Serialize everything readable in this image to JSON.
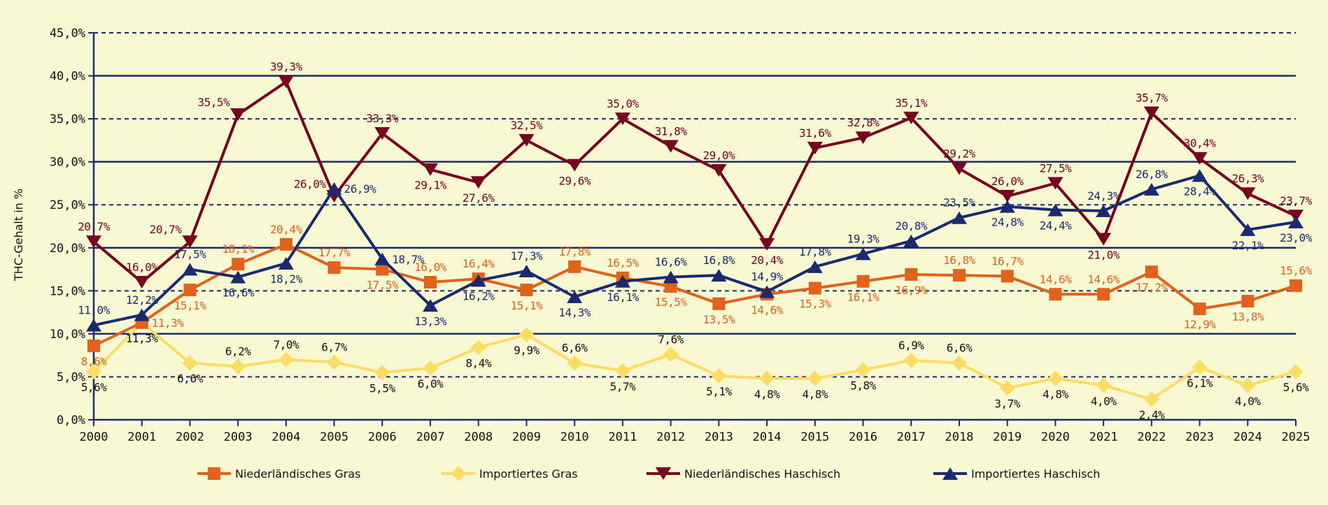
{
  "chart_data": {
    "type": "line",
    "title": "",
    "xlabel": "",
    "ylabel": "THC-Gehalt in %",
    "ylim": [
      0,
      45
    ],
    "ytick_step": 5,
    "yticks": [
      "0,0%",
      "5,0%",
      "10,0%",
      "15,0%",
      "20,0%",
      "25,0%",
      "30,0%",
      "35,0%",
      "40,0%",
      "45,0%"
    ],
    "grid": {
      "solid_at": [
        10,
        20,
        30,
        40
      ],
      "dashed_at": [
        5,
        15,
        25,
        35,
        45
      ]
    },
    "categories": [
      "2000",
      "2001",
      "2002",
      "2003",
      "2004",
      "2005",
      "2006",
      "2007",
      "2008",
      "2009",
      "2010",
      "2011",
      "2012",
      "2013",
      "2014",
      "2015",
      "2016",
      "2017",
      "2018",
      "2019",
      "2020",
      "2021",
      "2022",
      "2023",
      "2024",
      "2025"
    ],
    "legend_position": "bottom",
    "series": [
      {
        "name": "Niederländisches Gras",
        "color": "#E2621C",
        "marker": "square",
        "values": [
          8.6,
          11.3,
          15.1,
          18.1,
          20.4,
          17.7,
          17.5,
          16.0,
          16.4,
          15.1,
          17.8,
          16.5,
          15.5,
          13.5,
          14.6,
          15.3,
          16.1,
          16.9,
          16.8,
          16.7,
          14.6,
          14.6,
          17.2,
          12.9,
          13.8,
          15.6
        ],
        "labels": [
          "8,6%",
          "11,3%",
          "15,1%",
          "18,1%",
          "20,4%",
          "17,7%",
          "17,5%",
          "16,0%",
          "16,4%",
          "15,1%",
          "17,8%",
          "16,5%",
          "15,5%",
          "13,5%",
          "14,6%",
          "15,3%",
          "16,1%",
          "16,9%",
          "16,8%",
          "16,7%",
          "14,6%",
          "14,6%",
          "17,2%",
          "12,9%",
          "13,8%",
          "15,6%"
        ],
        "label_pos": [
          "below",
          "right",
          "below",
          "above",
          "above",
          "above",
          "below",
          "above",
          "above",
          "below",
          "above",
          "above",
          "below",
          "below",
          "below",
          "below",
          "below",
          "below",
          "above",
          "above",
          "above",
          "above",
          "below",
          "below",
          "below",
          "above"
        ]
      },
      {
        "name": "Importiertes Gras",
        "color": "#FCDC62",
        "label_color": "#111111",
        "marker": "diamond",
        "values": [
          5.6,
          11.3,
          6.6,
          6.2,
          7.0,
          6.7,
          5.5,
          6.0,
          8.4,
          9.9,
          6.6,
          5.7,
          7.6,
          5.1,
          4.8,
          4.8,
          5.8,
          6.9,
          6.6,
          3.7,
          4.8,
          4.0,
          2.4,
          6.1,
          4.0,
          5.6
        ],
        "labels": [
          "5,6%",
          "11,3%",
          "6,6%",
          "6,2%",
          "7,0%",
          "6,7%",
          "5,5%",
          "6,0%",
          "8,4%",
          "9,9%",
          "6,6%",
          "5,7%",
          "7,6%",
          "5,1%",
          "4,8%",
          "4,8%",
          "5,8%",
          "6,9%",
          "6,6%",
          "3,7%",
          "4,8%",
          "4,0%",
          "2,4%",
          "6,1%",
          "4,0%",
          "5,6%"
        ],
        "label_pos": [
          "below",
          "below",
          "below",
          "above",
          "above",
          "above",
          "below",
          "below",
          "below",
          "below",
          "above",
          "below",
          "above",
          "below",
          "below",
          "below",
          "below",
          "above",
          "above",
          "below",
          "below",
          "below",
          "below",
          "below",
          "below",
          "below"
        ]
      },
      {
        "name": "Niederländisches Haschisch",
        "color": "#7A0020",
        "marker": "triangle-down",
        "values": [
          20.7,
          16.0,
          20.7,
          35.5,
          39.3,
          26.0,
          33.3,
          29.1,
          27.6,
          32.5,
          29.6,
          35.0,
          31.8,
          29.0,
          20.4,
          31.6,
          32.8,
          35.1,
          29.2,
          26.0,
          27.5,
          21.0,
          35.7,
          30.4,
          26.3,
          23.7
        ],
        "labels": [
          "20,7%",
          "16,0%",
          "20,7%",
          "35,5%",
          "39,3%",
          "26,0%",
          "33,3%",
          "29,1%",
          "27,6%",
          "32,5%",
          "29,6%",
          "35,0%",
          "31,8%",
          "29,0%",
          "20,4%",
          "31,6%",
          "32,8%",
          "35,1%",
          "29,2%",
          "26,0%",
          "27,5%",
          "21,0%",
          "35,7%",
          "30,4%",
          "26,3%",
          "23,7%"
        ],
        "label_pos": [
          "above",
          "above",
          "left",
          "left",
          "above",
          "left",
          "above",
          "below",
          "below",
          "above",
          "below",
          "above",
          "above",
          "above",
          "below",
          "above",
          "above",
          "above",
          "above",
          "above",
          "above",
          "below",
          "above",
          "above",
          "above",
          "above"
        ]
      },
      {
        "name": "Importiertes Haschisch",
        "color": "#1A2A6E",
        "marker": "triangle-up",
        "values": [
          11.0,
          12.2,
          17.5,
          16.6,
          18.2,
          26.9,
          18.7,
          13.3,
          16.2,
          17.3,
          14.3,
          16.1,
          16.6,
          16.8,
          14.9,
          17.8,
          19.3,
          20.8,
          23.5,
          24.8,
          24.4,
          24.3,
          26.8,
          28.4,
          22.1,
          23.0
        ],
        "labels": [
          "11,0%",
          "12,2%",
          "17,5%",
          "16,6%",
          "18,2%",
          "26,9%",
          "18,7%",
          "13,3%",
          "16,2%",
          "17,3%",
          "14,3%",
          "16,1%",
          "16,6%",
          "16,8%",
          "14,9%",
          "17,8%",
          "19,3%",
          "20,8%",
          "23,5%",
          "24,8%",
          "24,4%",
          "24,3%",
          "26,8%",
          "28,4%",
          "22,1%",
          "23,0%"
        ],
        "label_pos": [
          "above",
          "above",
          "above",
          "below",
          "below",
          "right",
          "right",
          "below",
          "below",
          "above",
          "below",
          "below",
          "above",
          "above",
          "above",
          "above",
          "above",
          "above",
          "above",
          "below",
          "below",
          "above",
          "above",
          "below",
          "below",
          "below"
        ]
      }
    ]
  }
}
